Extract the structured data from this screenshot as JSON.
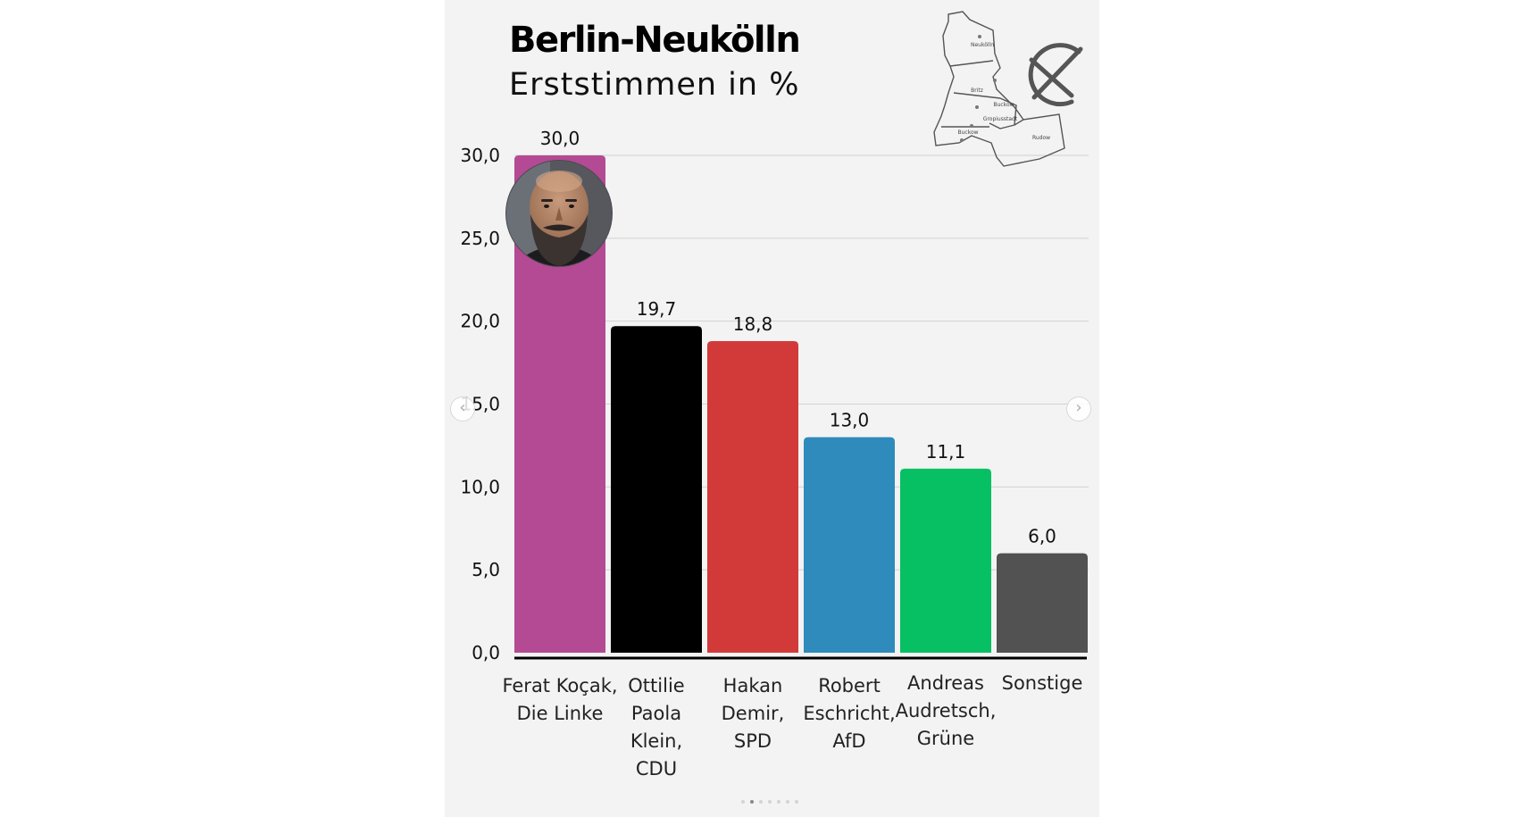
{
  "header": {
    "title": "Berlin-Neukölln",
    "subtitle": "Erststimmen in %"
  },
  "map": {
    "labels": [
      "Neukölln",
      "Britz",
      "Buckow",
      "Gropiusstadt",
      "Buckow",
      "Rudow"
    ]
  },
  "icons": {
    "ballot_mark": "ballot-cross-icon",
    "candidate_photo": "candidate-portrait",
    "prev": "chevron-left-icon",
    "next": "chevron-right-icon"
  },
  "carousel": {
    "prev_symbol": "‹",
    "next_symbol": "›",
    "slides": 7,
    "active": 1
  },
  "chart_data": {
    "type": "bar",
    "categories": [
      [
        "Ferat Koçak,",
        "Die Linke"
      ],
      [
        "Ottilie",
        "Paola",
        "Klein,",
        "CDU"
      ],
      [
        "Hakan",
        "Demir,",
        "SPD"
      ],
      [
        "Robert",
        "Eschricht,",
        "AfD"
      ],
      [
        "Andreas",
        "Audretsch,",
        "Grüne"
      ],
      [
        "Sonstige"
      ]
    ],
    "values": [
      30.0,
      19.7,
      18.8,
      13.0,
      11.1,
      6.0
    ],
    "value_labels": [
      "30,0",
      "19,7",
      "18,8",
      "13,0",
      "11,1",
      "6,0"
    ],
    "colors": [
      "#b44a93",
      "#000000",
      "#d23a3a",
      "#2e8bbb",
      "#06c063",
      "#525252"
    ],
    "yticks": [
      0,
      5,
      10,
      15,
      20,
      25,
      30
    ],
    "ytick_labels": [
      "0,0",
      "5,0",
      "10,0",
      "15,0",
      "20,0",
      "25,0",
      "30,0"
    ],
    "ylim": [
      0,
      30
    ],
    "xlabel": "",
    "ylabel": "",
    "grid": true
  }
}
